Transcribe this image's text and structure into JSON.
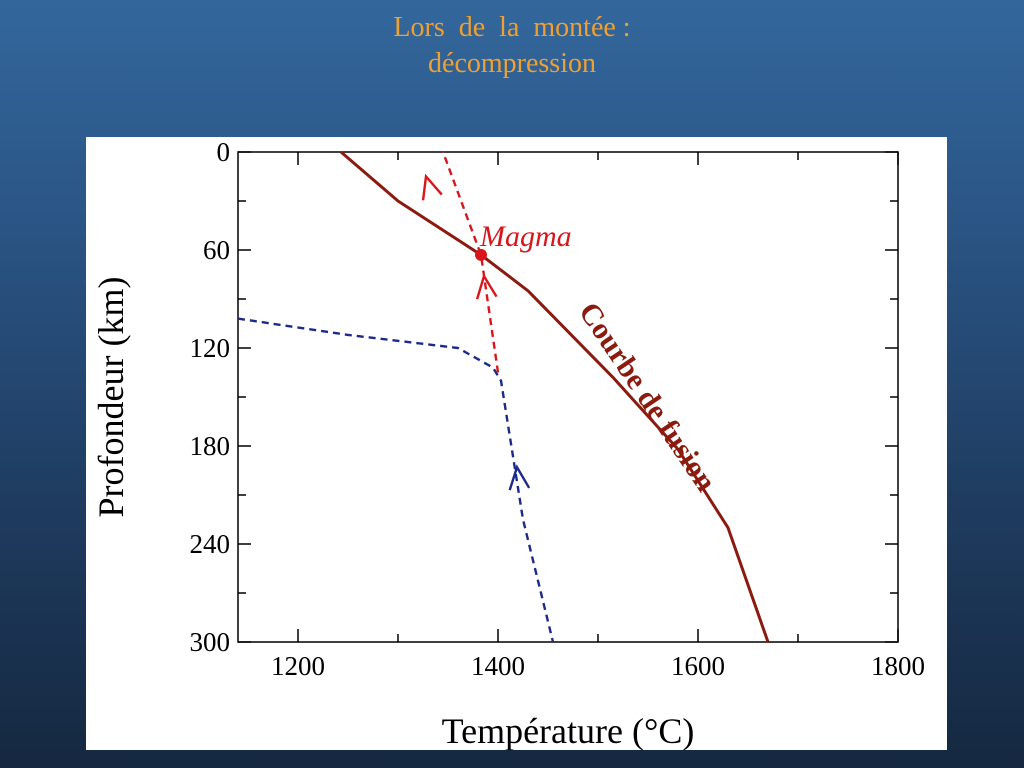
{
  "slide": {
    "title_line1": "Lors  de  la  montée :",
    "title_line2": "décompression"
  },
  "colors": {
    "fusion_curve": "#8b1a0f",
    "magma_path": "#d8161b",
    "mantle_path": "#1c2a8a",
    "title": "#f0a030"
  },
  "chart_data": {
    "type": "line",
    "xlabel": "Température  (°C)",
    "ylabel": "Profondeur (km)",
    "xlim": [
      1140,
      1800
    ],
    "ylim": [
      0,
      300
    ],
    "y_inverted": true,
    "x_ticks": [
      1200,
      1400,
      1600,
      1800
    ],
    "y_ticks": [
      0,
      60,
      120,
      180,
      240,
      300
    ],
    "x_tick_labels": [
      "1200",
      "1400",
      "1600",
      "1800"
    ],
    "y_tick_labels": [
      "0",
      "60",
      "120",
      "180",
      "240",
      "300"
    ],
    "series": [
      {
        "name": "Courbe  de  fusion",
        "style": "solid",
        "points": [
          [
            1243,
            0
          ],
          [
            1300,
            30
          ],
          [
            1383,
            63
          ],
          [
            1430,
            85
          ],
          [
            1515,
            138
          ],
          [
            1580,
            182
          ],
          [
            1630,
            230
          ],
          [
            1670,
            300
          ]
        ]
      },
      {
        "style": "dashed",
        "points": [
          [
            1140,
            102
          ],
          [
            1250,
            112
          ],
          [
            1360,
            120
          ],
          [
            1395,
            132
          ],
          [
            1403,
            140
          ],
          [
            1425,
            225
          ],
          [
            1455,
            300
          ]
        ]
      },
      {
        "style": "dashed",
        "points": [
          [
            1400,
            135
          ],
          [
            1383,
            63
          ],
          [
            1345,
            0
          ]
        ]
      }
    ],
    "annotations": [
      {
        "text": "Magma",
        "x": 1383,
        "y": 63
      }
    ]
  }
}
